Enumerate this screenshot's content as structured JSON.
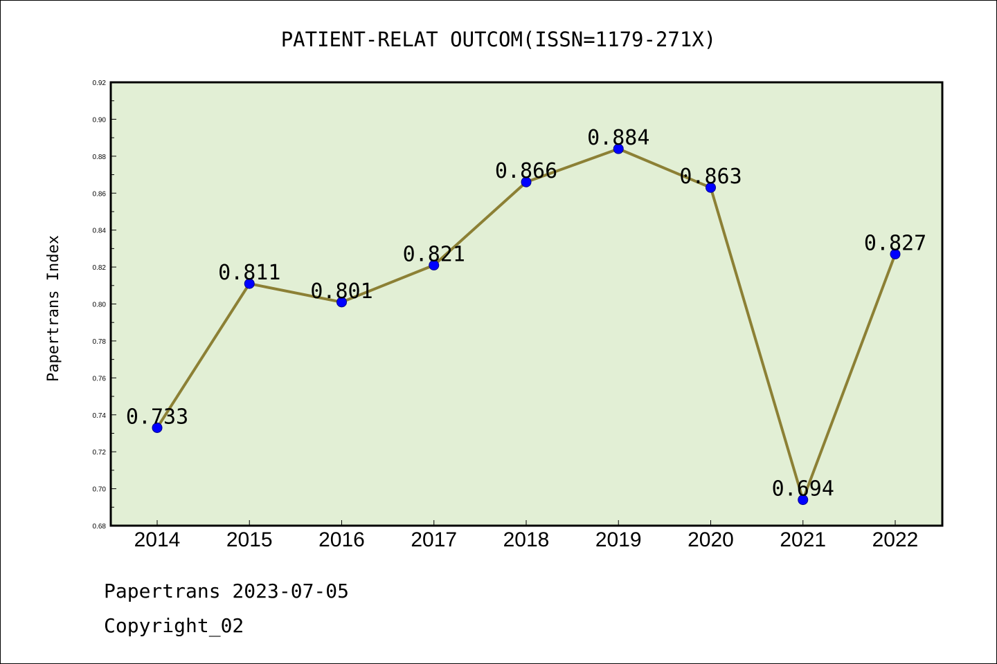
{
  "chart_data": {
    "type": "line",
    "title": "PATIENT-RELAT OUTCOM(ISSN=1179-271X)",
    "ylabel": "Papertrans Index",
    "xlabel": "",
    "categories": [
      "2014",
      "2015",
      "2016",
      "2017",
      "2018",
      "2019",
      "2020",
      "2021",
      "2022"
    ],
    "values": [
      0.733,
      0.811,
      0.801,
      0.821,
      0.866,
      0.884,
      0.863,
      0.694,
      0.827
    ],
    "data_labels": [
      "0.733",
      "0.811",
      "0.801",
      "0.821",
      "0.866",
      "0.884",
      "0.863",
      "0.694",
      "0.827"
    ],
    "ylim": [
      0.68,
      0.92
    ],
    "yticks": [
      0.68,
      0.7,
      0.72,
      0.74,
      0.76,
      0.78,
      0.8,
      0.82,
      0.84,
      0.86,
      0.88,
      0.9,
      0.92
    ],
    "ytick_labels": [
      "0.68",
      "0.70",
      "0.72",
      "0.74",
      "0.76",
      "0.78",
      "0.80",
      "0.82",
      "0.84",
      "0.86",
      "0.88",
      "0.90",
      "0.92"
    ],
    "grid": false,
    "legend": "none",
    "colors": {
      "plot_background": "#e2efd5",
      "line": "#8c8035",
      "marker": "#0000ff",
      "marker_edge": "#00008b"
    }
  },
  "footer": {
    "line1": "Papertrans 2023-07-05",
    "line2": "Copyright_02"
  }
}
